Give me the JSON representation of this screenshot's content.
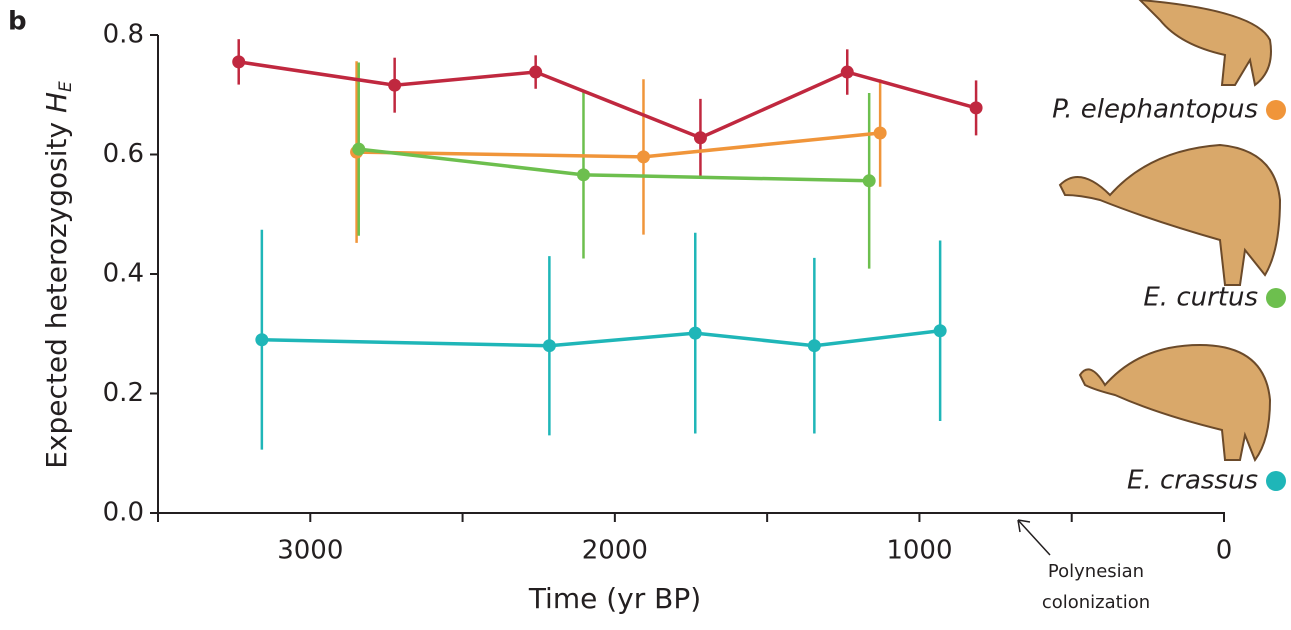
{
  "chart_data": {
    "type": "line",
    "panel_label": "b",
    "xlabel": "Time (yr BP)",
    "ylabel": "Expected heterozygosity",
    "ylabel_symbol": "H",
    "ylabel_subscript": "E",
    "xlim": [
      3500,
      0
    ],
    "xticks": [
      3000,
      2000,
      1000,
      0
    ],
    "xminorticks": [
      3500,
      2500,
      1500,
      500
    ],
    "ylim": [
      0,
      0.8
    ],
    "yticks": [
      {
        "value": 0,
        "label": "0.0"
      },
      0.2,
      0.4,
      0.6,
      0.8
    ],
    "legend_position": "right",
    "series": [
      {
        "color": "#c0283f",
        "x": [
          3235,
          2723,
          2260,
          1719,
          1237,
          814
        ],
        "values": [
          0.755,
          0.716,
          0.738,
          0.628,
          0.738,
          0.678
        ],
        "errors": [
          0.038,
          0.046,
          0.028,
          0.065,
          0.038,
          0.046
        ]
      },
      {
        "name": "P. elephantopus",
        "color": "#f0953a",
        "x": [
          2848,
          1906,
          1129
        ],
        "values": [
          0.604,
          0.596,
          0.636
        ],
        "errors": [
          0.152,
          0.13,
          0.09
        ]
      },
      {
        "name": "E. curtus",
        "color": "#6dbf4e",
        "x": [
          2841,
          2103,
          1165
        ],
        "values": [
          0.609,
          0.566,
          0.556
        ],
        "errors": [
          0.145,
          0.14,
          0.147
        ]
      },
      {
        "name": "E. crassus",
        "color": "#1fb6b8",
        "x": [
          3159,
          2215,
          1736,
          1345,
          932
        ],
        "values": [
          0.29,
          0.28,
          0.301,
          0.28,
          0.305
        ],
        "errors": [
          0.184,
          0.15,
          0.168,
          0.147,
          0.151
        ]
      }
    ],
    "annotation": {
      "text_lines": [
        "Polynesian",
        "colonization"
      ]
    }
  }
}
